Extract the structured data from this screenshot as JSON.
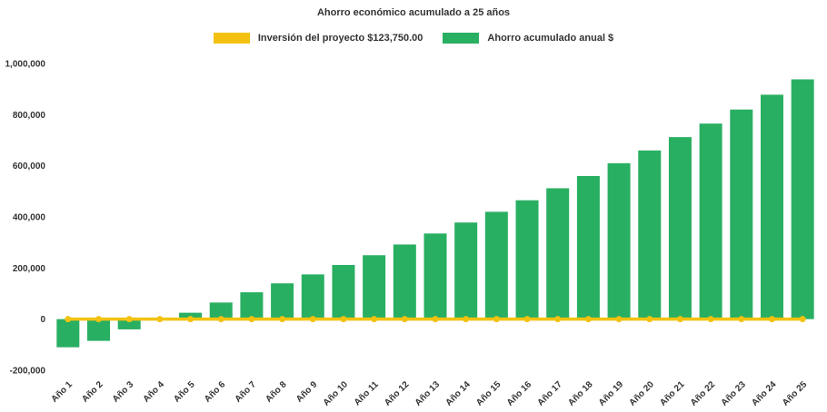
{
  "chart_data": {
    "type": "bar",
    "title": "Ahorro económico acumulado a 25 años",
    "categories": [
      "Año 1",
      "Año 2",
      "Año 3",
      "Año 4",
      "Año 5",
      "Año 6",
      "Año 7",
      "Año 8",
      "Año 9",
      "Año 10",
      "Año 11",
      "Año 12",
      "Año 13",
      "Año 14",
      "Año 15",
      "Año 16",
      "Año 17",
      "Año 18",
      "Año 19",
      "Año 20",
      "Año 21",
      "Año 22",
      "Año 23",
      "Año 24",
      "Año 25"
    ],
    "series": [
      {
        "id": "investment",
        "name": "Inversión del proyecto $123,750.00",
        "type": "line",
        "color": "#F3C211",
        "values": [
          0,
          0,
          0,
          0,
          0,
          0,
          0,
          0,
          0,
          0,
          0,
          0,
          0,
          0,
          0,
          0,
          0,
          0,
          0,
          0,
          0,
          0,
          0,
          0,
          0
        ]
      },
      {
        "id": "savings",
        "name": "Ahorro acumulado anual $",
        "type": "column",
        "color": "#29AF62",
        "values": [
          -110000,
          -85000,
          -40000,
          5000,
          25000,
          65000,
          105000,
          140000,
          175000,
          212000,
          250000,
          292000,
          335000,
          378000,
          420000,
          465000,
          512000,
          560000,
          610000,
          660000,
          712000,
          765000,
          820000,
          878000,
          938000
        ]
      }
    ],
    "xlabel": "",
    "ylabel": "",
    "ylim": [
      -200000,
      1000000
    ],
    "yticks": [
      -200000,
      0,
      200000,
      400000,
      600000,
      800000,
      1000000
    ],
    "grid": false,
    "legend_position": "top",
    "text_color": "#333333",
    "background_color": "#FFFFFF"
  }
}
